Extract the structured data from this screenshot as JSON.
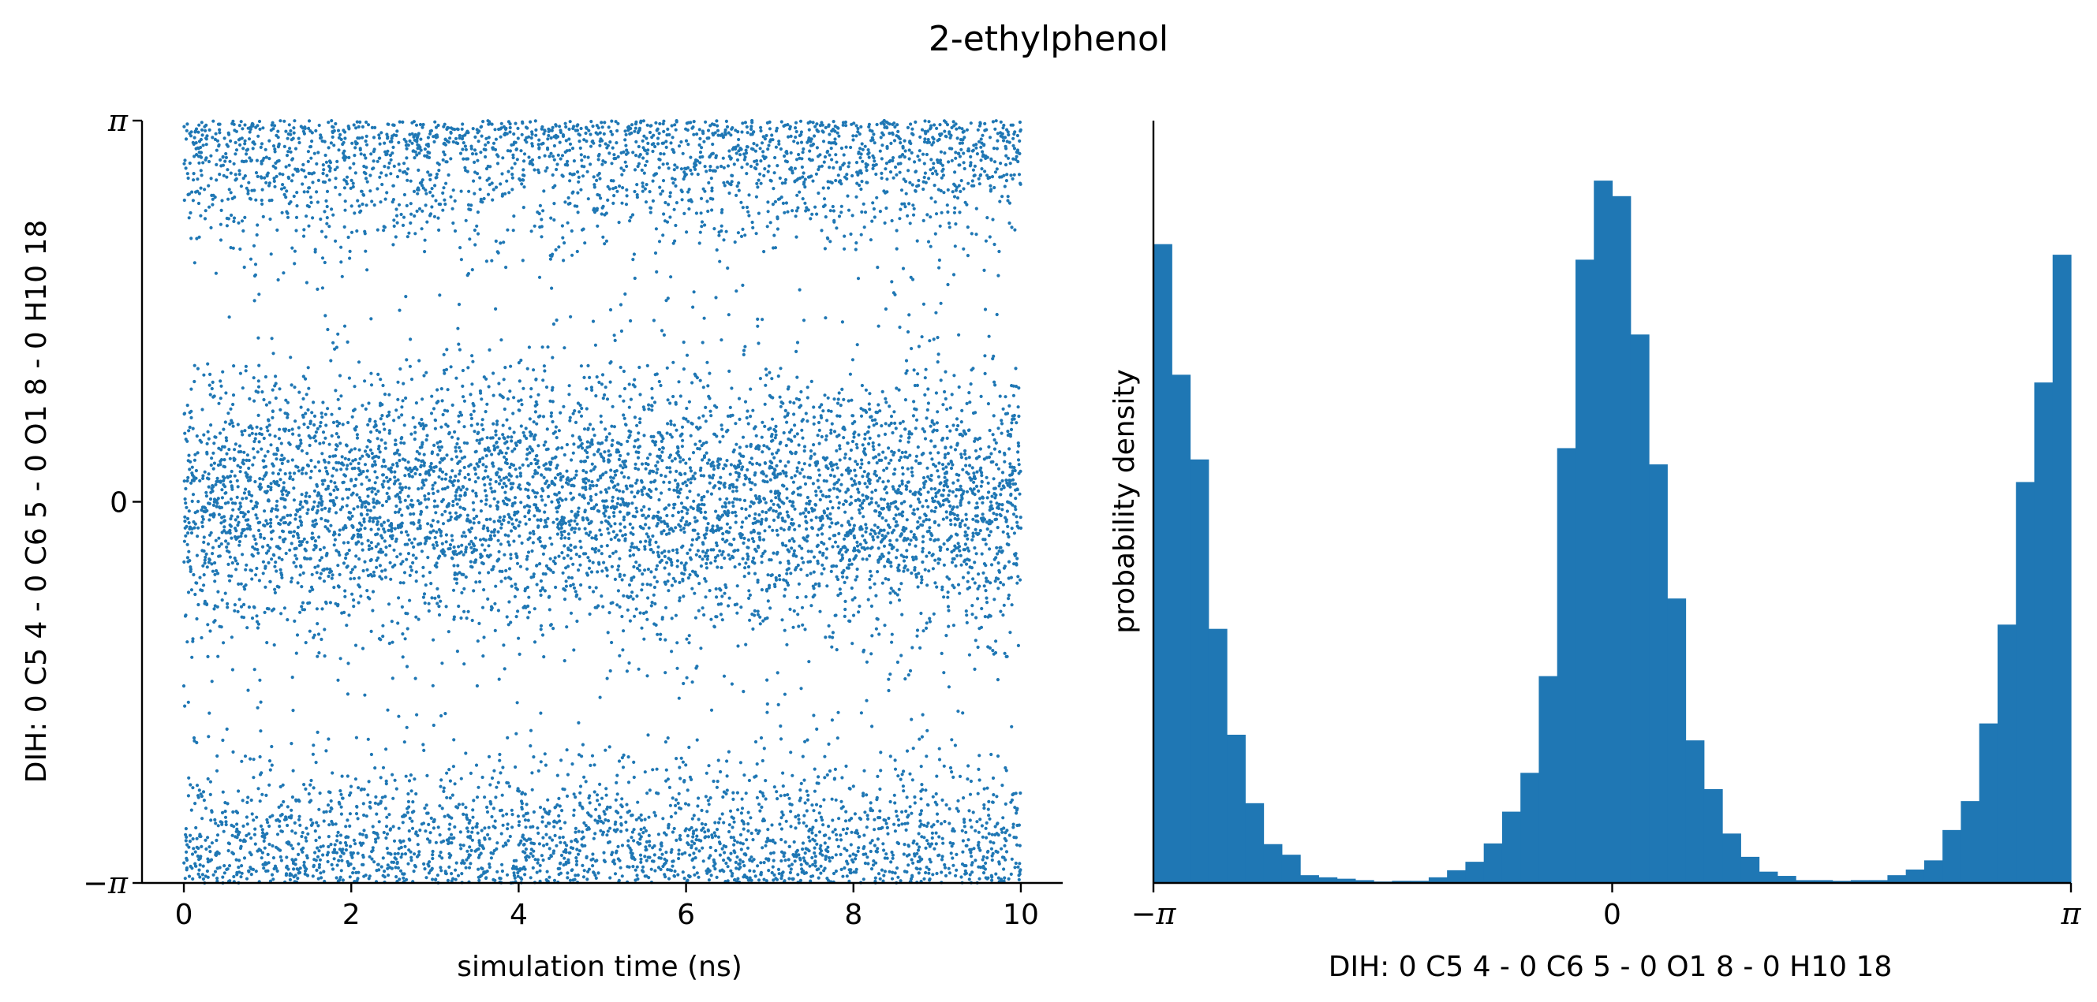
{
  "figure_title": "2-ethylphenol",
  "colors": {
    "series": "#1f77b4",
    "axis": "#000000"
  },
  "chart_data": [
    {
      "type": "scatter",
      "title": "",
      "xlabel": "simulation time (ns)",
      "ylabel": "DIH:  0 C5 4 -  0 C6 5 -  0 O1 8 -  0 H10 18",
      "xlim": [
        -0.5,
        10.5
      ],
      "ylim": [
        -3.14159,
        3.14159
      ],
      "xticks": [
        0,
        2,
        4,
        6,
        8,
        10
      ],
      "xtick_labels": [
        "0",
        "2",
        "4",
        "6",
        "8",
        "10"
      ],
      "yticks": [
        -3.14159,
        0,
        3.14159
      ],
      "ytick_labels": [
        "−π",
        "0",
        "π"
      ],
      "x_range": [
        0,
        10
      ],
      "point_count": 10000,
      "clusters": [
        {
          "center": 0.0,
          "spread": 0.55,
          "fraction": 0.53,
          "label": "0"
        },
        {
          "center": 3.14159,
          "spread": 0.5,
          "fraction": 0.47,
          "label": "±π",
          "wraps": true
        }
      ],
      "grid": false
    },
    {
      "type": "bar",
      "title": "",
      "xlabel": "DIH:  0 C5 4 -  0 C6 5 -  0 O1 8 -  0 H10 18",
      "ylabel": "probability density",
      "xlim": [
        -3.14159,
        3.14159
      ],
      "xticks": [
        -3.14159,
        0,
        3.14159
      ],
      "xtick_labels": [
        "−π",
        "0",
        "π"
      ],
      "bins": 50,
      "bin_range": [
        -3.14159,
        3.14159
      ],
      "values": [
        0.905,
        0.72,
        0.6,
        0.36,
        0.21,
        0.113,
        0.055,
        0.04,
        0.011,
        0.008,
        0.006,
        0.004,
        0.002,
        0.003,
        0.003,
        0.008,
        0.018,
        0.03,
        0.056,
        0.101,
        0.156,
        0.293,
        0.616,
        0.883,
        0.995,
        0.973,
        0.777,
        0.593,
        0.403,
        0.202,
        0.133,
        0.07,
        0.037,
        0.016,
        0.01,
        0.004,
        0.004,
        0.003,
        0.004,
        0.004,
        0.011,
        0.019,
        0.032,
        0.075,
        0.116,
        0.226,
        0.366,
        0.568,
        0.709,
        0.89
      ],
      "grid": false
    }
  ]
}
